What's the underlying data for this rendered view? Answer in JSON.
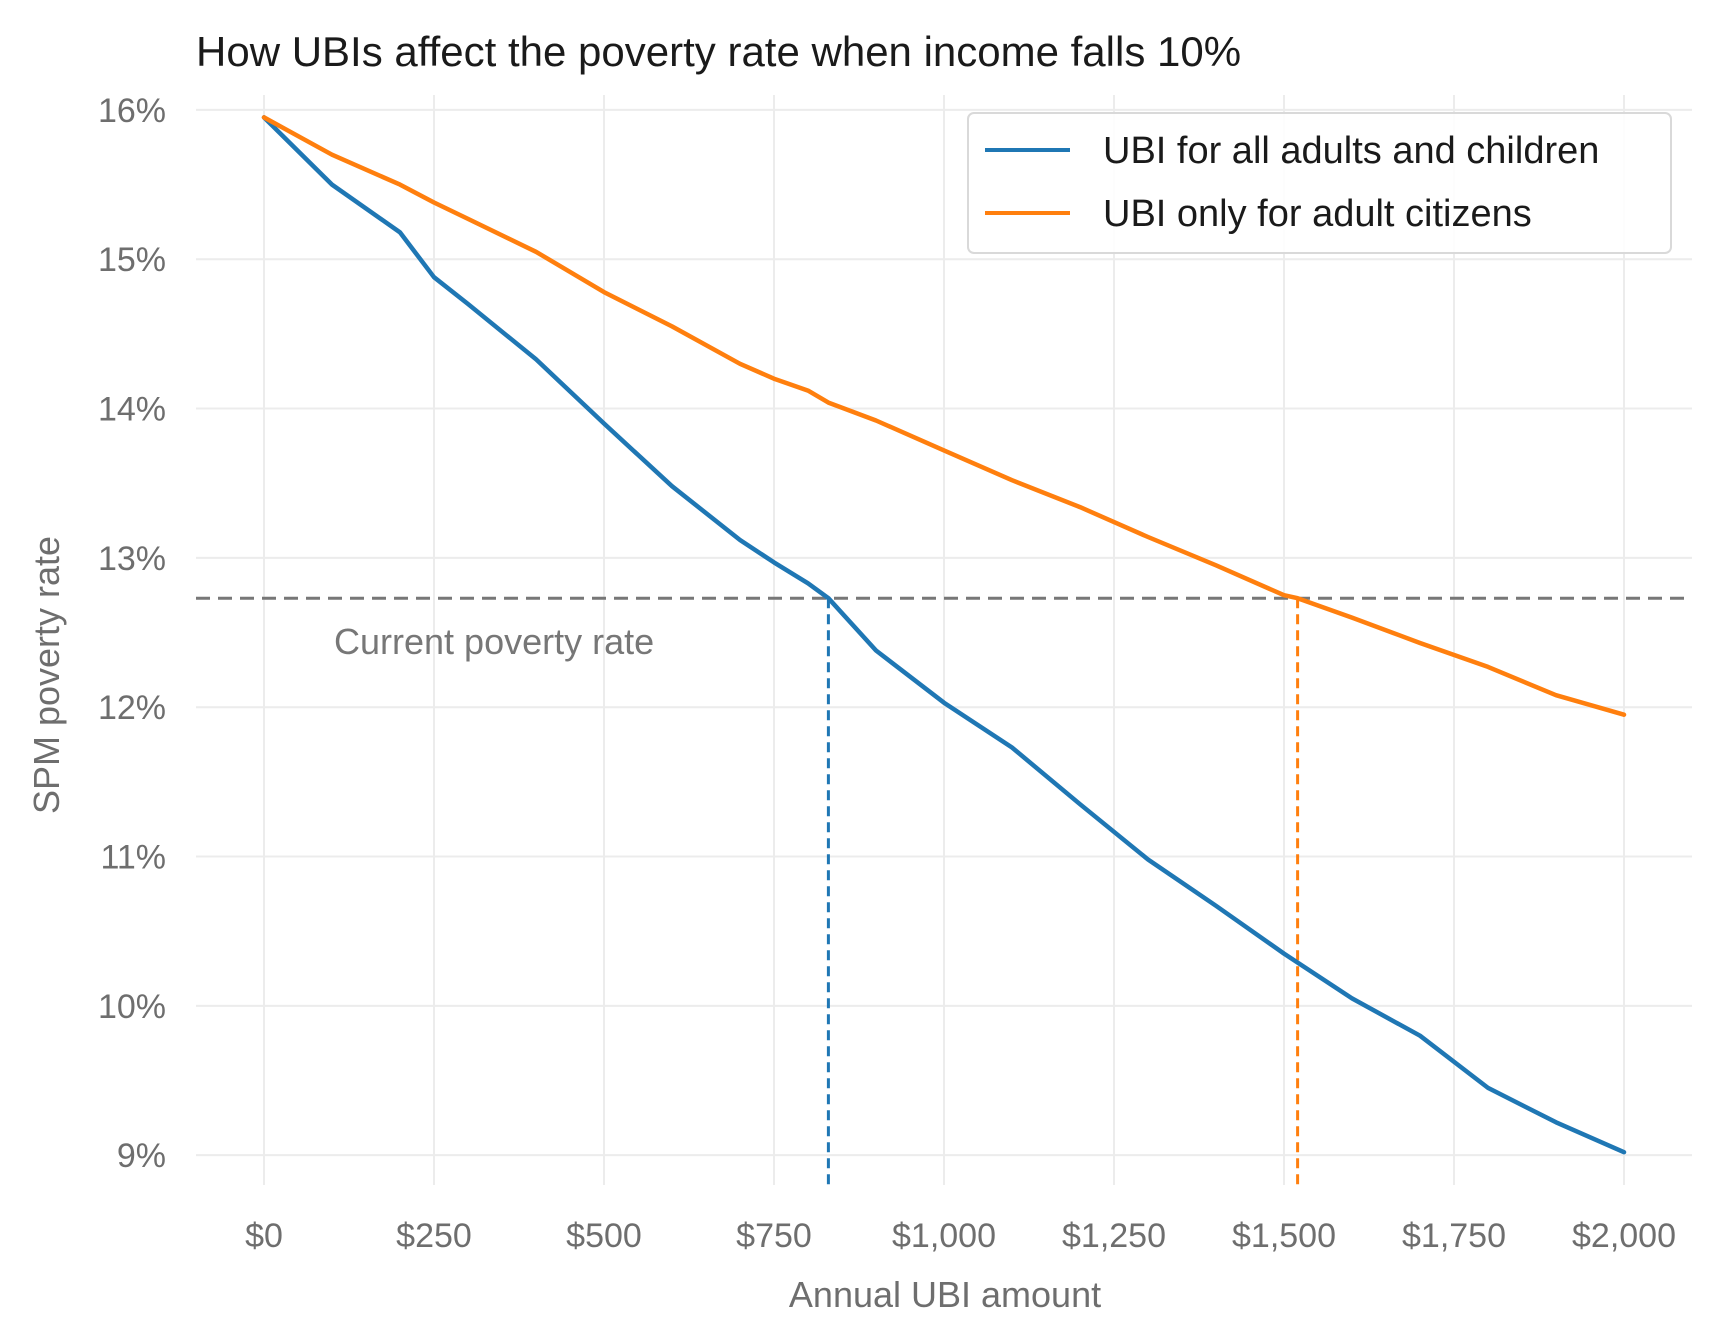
{
  "chart_data": {
    "type": "line",
    "title": "How UBIs affect the poverty rate when income falls 10%",
    "xlabel": "Annual UBI amount",
    "ylabel": "SPM poverty rate",
    "xlim": [
      -100,
      2100
    ],
    "ylim": [
      8.8,
      16.1
    ],
    "x_ticks": [
      0,
      250,
      500,
      750,
      1000,
      1250,
      1500,
      1750,
      2000
    ],
    "x_tick_labels": [
      "$0",
      "$250",
      "$500",
      "$750",
      "$1,000",
      "$1,250",
      "$1,500",
      "$1,750",
      "$2,000"
    ],
    "y_ticks": [
      9,
      10,
      11,
      12,
      13,
      14,
      15,
      16
    ],
    "y_tick_labels": [
      "9%",
      "10%",
      "11%",
      "12%",
      "13%",
      "14%",
      "15%",
      "16%"
    ],
    "grid": true,
    "legend_position": "top-right",
    "series": [
      {
        "name": "UBI for all adults and children",
        "color": "#1f77b4",
        "x": [
          0,
          100,
          200,
          250,
          300,
          400,
          500,
          600,
          700,
          750,
          800,
          830,
          900,
          1000,
          1100,
          1200,
          1300,
          1400,
          1500,
          1600,
          1700,
          1800,
          1900,
          2000
        ],
        "values": [
          15.95,
          15.5,
          15.18,
          14.88,
          14.7,
          14.33,
          13.9,
          13.48,
          13.12,
          12.97,
          12.83,
          12.73,
          12.38,
          12.03,
          11.73,
          11.35,
          10.98,
          10.67,
          10.35,
          10.05,
          9.8,
          9.45,
          9.22,
          9.02
        ]
      },
      {
        "name": "UBI only for adult citizens",
        "color": "#ff7f0e",
        "x": [
          0,
          100,
          200,
          250,
          300,
          400,
          500,
          600,
          700,
          750,
          800,
          830,
          900,
          1000,
          1100,
          1200,
          1300,
          1400,
          1500,
          1520,
          1600,
          1700,
          1800,
          1900,
          2000
        ],
        "values": [
          15.95,
          15.7,
          15.5,
          15.38,
          15.27,
          15.05,
          14.78,
          14.55,
          14.3,
          14.2,
          14.12,
          14.04,
          13.92,
          13.72,
          13.52,
          13.34,
          13.14,
          12.95,
          12.75,
          12.73,
          12.6,
          12.43,
          12.27,
          12.08,
          11.95
        ]
      }
    ],
    "reference_lines": [
      {
        "orientation": "horizontal",
        "value": 12.73,
        "color": "#777777",
        "label": "Current poverty rate"
      },
      {
        "orientation": "vertical",
        "value": 830,
        "color": "#1f77b4"
      },
      {
        "orientation": "vertical",
        "value": 1520,
        "color": "#ff7f0e"
      }
    ]
  }
}
